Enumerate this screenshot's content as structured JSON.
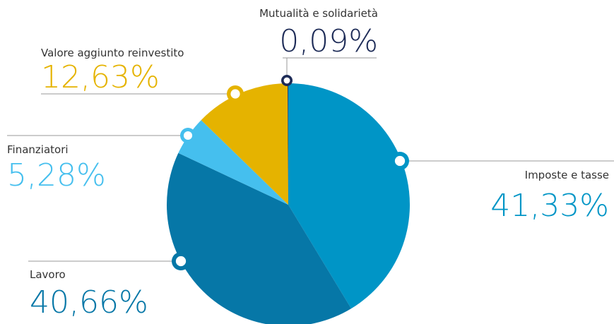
{
  "chart_data": {
    "type": "pie",
    "categories": [
      "Imposte e tasse",
      "Lavoro",
      "Finanziatori",
      "Valore aggiunto reinvestito",
      "Mutualità e solidarietà"
    ],
    "values": [
      41.33,
      40.66,
      5.28,
      12.63,
      0.09
    ],
    "value_labels": [
      "41,33%",
      "40,66%",
      "5,28%",
      "12,63%",
      "0,09%"
    ],
    "colors": [
      "#0095c6",
      "#0677a7",
      "#45bfee",
      "#e5b300",
      "#1d2b57"
    ]
  }
}
